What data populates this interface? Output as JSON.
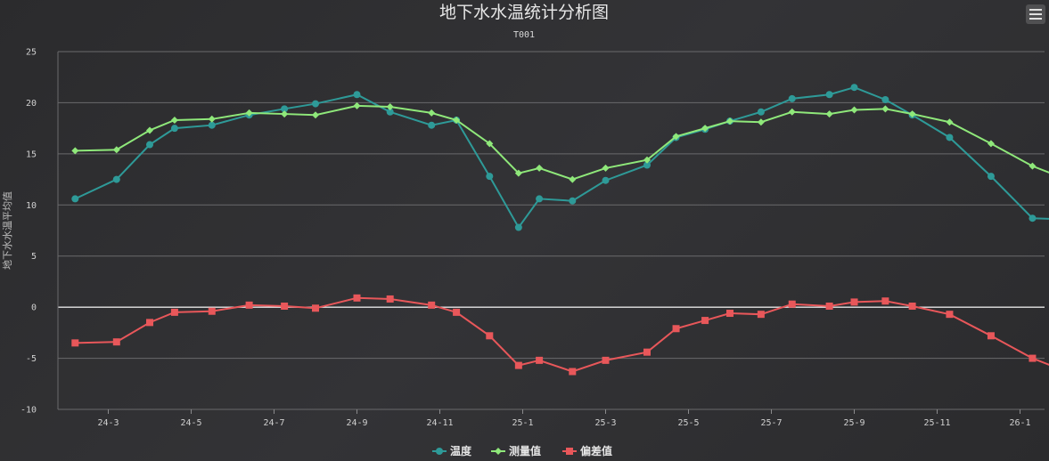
{
  "chart_data": {
    "type": "line",
    "title": "地下水水温统计分析图",
    "subtitle": "T001",
    "ylabel": "地下水水温平均值",
    "xlabel": "",
    "ylim": [
      -10,
      25
    ],
    "yticks": [
      -10,
      -5,
      0,
      5,
      10,
      15,
      20,
      25
    ],
    "x_range": [
      0,
      33
    ],
    "x_ticks": [
      {
        "pos": 1,
        "label": "24-3"
      },
      {
        "pos": 3,
        "label": "24-5"
      },
      {
        "pos": 5,
        "label": "24-7"
      },
      {
        "pos": 7,
        "label": "24-9"
      },
      {
        "pos": 9,
        "label": "24-11"
      },
      {
        "pos": 11,
        "label": "25-1"
      },
      {
        "pos": 13,
        "label": "25-3"
      },
      {
        "pos": 15,
        "label": "25-5"
      },
      {
        "pos": 17,
        "label": "25-7"
      },
      {
        "pos": 19,
        "label": "25-9"
      },
      {
        "pos": 21,
        "label": "25-11"
      },
      {
        "pos": 23,
        "label": "26-1"
      }
    ],
    "grid": true,
    "legend_position": "bottom-center",
    "series": [
      {
        "name": "温度",
        "color": "#2e9a98",
        "marker": "circle",
        "x": [
          0.2,
          1.2,
          2.0,
          2.6,
          3.5,
          4.4,
          5.25,
          6.0,
          7.0,
          7.8,
          8.8,
          9.4,
          10.2,
          10.9,
          11.4,
          12.2,
          13.0,
          14.0,
          14.7,
          15.4,
          16.0,
          16.75,
          17.5,
          18.4,
          19.0,
          19.75,
          20.4,
          21.3,
          22.3,
          23.3,
          24.0
        ],
        "values": [
          10.6,
          12.5,
          15.9,
          17.5,
          17.8,
          18.8,
          19.4,
          19.9,
          20.8,
          19.1,
          17.8,
          18.3,
          12.8,
          7.8,
          10.6,
          10.4,
          12.4,
          13.9,
          16.6,
          17.4,
          18.2,
          19.1,
          20.4,
          20.8,
          21.5,
          20.3,
          18.8,
          16.6,
          12.8,
          8.7,
          8.6
        ]
      },
      {
        "name": "测量值",
        "color": "#8fe87a",
        "marker": "diamond",
        "x": [
          0.2,
          1.2,
          2.0,
          2.6,
          3.5,
          4.4,
          5.25,
          6.0,
          7.0,
          7.8,
          8.8,
          9.4,
          10.2,
          10.9,
          11.4,
          12.2,
          13.0,
          14.0,
          14.7,
          15.4,
          16.0,
          16.75,
          17.5,
          18.4,
          19.0,
          19.75,
          20.4,
          21.3,
          22.3,
          23.3,
          24.0
        ],
        "values": [
          15.3,
          15.4,
          17.3,
          18.3,
          18.4,
          19.0,
          18.9,
          18.8,
          19.7,
          19.6,
          19.0,
          18.3,
          16.0,
          13.1,
          13.6,
          12.5,
          13.6,
          14.4,
          16.7,
          17.5,
          18.2,
          18.1,
          19.1,
          18.9,
          19.3,
          19.4,
          18.9,
          18.1,
          16.0,
          13.8,
          12.7
        ]
      },
      {
        "name": "偏差值",
        "color": "#e8575a",
        "marker": "square",
        "x": [
          0.2,
          1.2,
          2.0,
          2.6,
          3.5,
          4.4,
          5.25,
          6.0,
          7.0,
          7.8,
          8.8,
          9.4,
          10.2,
          10.9,
          11.4,
          12.2,
          13.0,
          14.0,
          14.7,
          15.4,
          16.0,
          16.75,
          17.5,
          18.4,
          19.0,
          19.75,
          20.4,
          21.3,
          22.3,
          23.3,
          24.0
        ],
        "values": [
          -3.5,
          -3.4,
          -1.5,
          -0.5,
          -0.4,
          0.2,
          0.1,
          -0.1,
          0.9,
          0.8,
          0.2,
          -0.5,
          -2.8,
          -5.7,
          -5.2,
          -6.3,
          -5.2,
          -4.4,
          -2.1,
          -1.3,
          -0.6,
          -0.7,
          0.3,
          0.1,
          0.5,
          0.6,
          0.1,
          -0.7,
          -2.8,
          -5.0,
          -6.1
        ]
      }
    ]
  }
}
